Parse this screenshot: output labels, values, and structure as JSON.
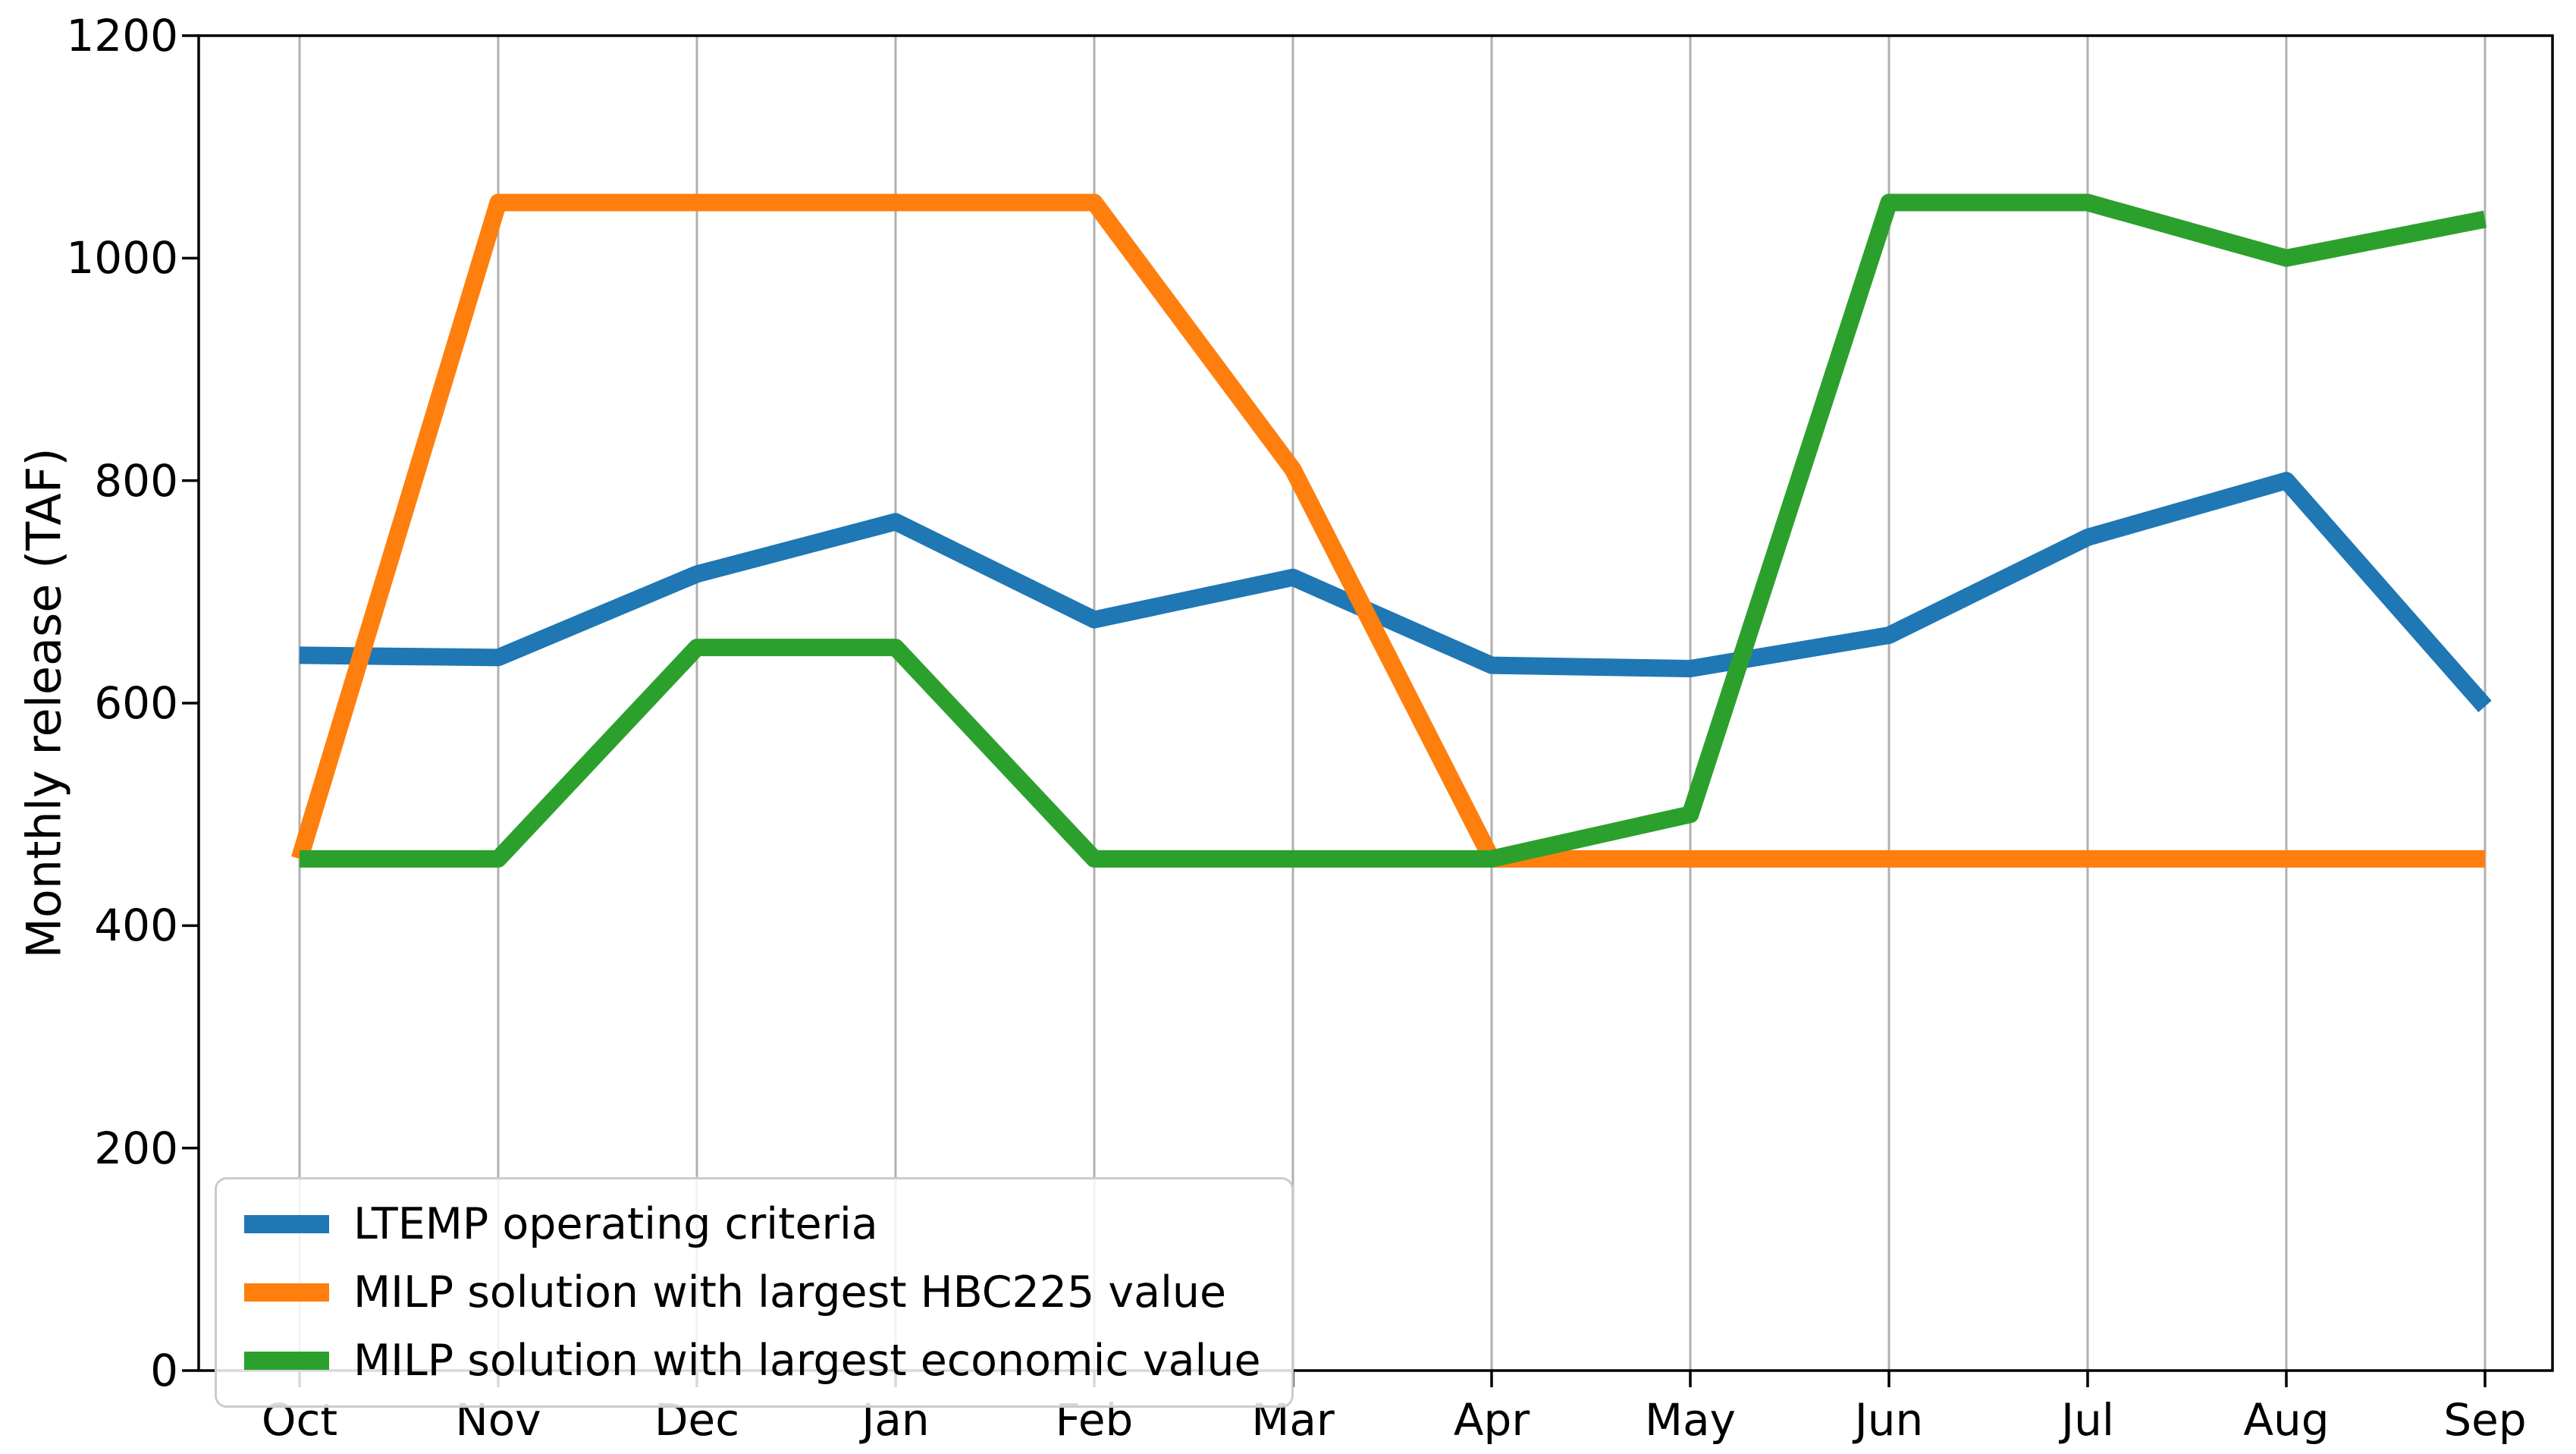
{
  "chart_data": {
    "type": "line",
    "title": "",
    "xlabel": "",
    "ylabel": "Monthly release (TAF)",
    "x": [
      "Oct",
      "Nov",
      "Dec",
      "Jan",
      "Feb",
      "Mar",
      "Apr",
      "May",
      "Jun",
      "Jul",
      "Aug",
      "Sep"
    ],
    "ylim": [
      0,
      1200
    ],
    "yticks": [
      0,
      200,
      400,
      600,
      800,
      1000,
      1200
    ],
    "ytick_labels": [
      "0",
      "200",
      "400",
      "600",
      "800",
      "1000",
      "1200"
    ],
    "grid": "vertical gridlines only, light gray",
    "legend_position": "lower left",
    "series": [
      {
        "name": "LTEMP operating criteria",
        "color": "#1f77b4",
        "values": [
          643,
          641,
          716,
          763,
          675,
          713,
          634,
          631,
          661,
          749,
          800,
          597
        ]
      },
      {
        "name": "MILP solution with largest HBC225 value",
        "color": "#ff7f0e",
        "values": [
          460,
          1050,
          1050,
          1050,
          1050,
          810,
          460,
          460,
          460,
          460,
          460,
          460
        ]
      },
      {
        "name": "MILP solution with largest economic value",
        "color": "#2ca02c",
        "values": [
          460,
          460,
          650,
          650,
          460,
          460,
          460,
          500,
          1050,
          1050,
          1000,
          1035
        ]
      }
    ],
    "style": {
      "grid_color": "#b0b0b0",
      "spine_color": "#000000",
      "line_width": 23,
      "background": "#ffffff"
    }
  }
}
